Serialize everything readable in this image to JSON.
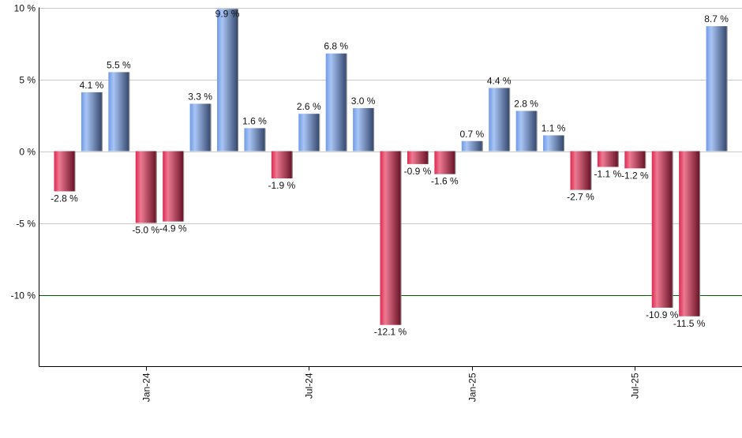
{
  "chart_data": {
    "type": "bar",
    "title": "",
    "xlabel": "",
    "ylabel": "",
    "ylim": [
      -15,
      10
    ],
    "yticks": [
      10,
      5,
      0,
      -5,
      -10
    ],
    "ytick_labels": [
      "10 %",
      "5 %",
      "0 %",
      "-5 %",
      "-10 %"
    ],
    "categories": [
      "Oct-23",
      "Nov-23",
      "Dec-23",
      "Jan-24",
      "Feb-24",
      "Mar-24",
      "Apr-24",
      "May-24",
      "Jun-24",
      "Jul-24",
      "Aug-24",
      "Sep-24",
      "Oct-24",
      "Nov-24",
      "Dec-24",
      "Jan-25",
      "Feb-25",
      "Mar-25",
      "Apr-25",
      "May-25",
      "Jun-25",
      "Jul-25",
      "Aug-25",
      "Sep-25",
      "Oct-25"
    ],
    "values": [
      -2.8,
      4.1,
      5.5,
      -5.0,
      -4.9,
      3.3,
      9.9,
      1.6,
      -1.9,
      2.6,
      6.8,
      3.0,
      -12.1,
      -0.9,
      -1.6,
      0.7,
      4.4,
      2.8,
      1.1,
      -2.7,
      -1.1,
      -1.2,
      -10.9,
      -11.5,
      8.7
    ],
    "xtick_labels": [
      {
        "index": 3,
        "label": "Jan-24"
      },
      {
        "index": 9,
        "label": "Jul-24"
      },
      {
        "index": 15,
        "label": "Jan-25"
      },
      {
        "index": 21,
        "label": "Jul-25"
      }
    ],
    "grid": true,
    "reference_line": -10,
    "colors": {
      "positive": "#6f9ae8",
      "negative": "#d8284f",
      "reference": "#006400",
      "grid": "#c8c8c8"
    }
  }
}
